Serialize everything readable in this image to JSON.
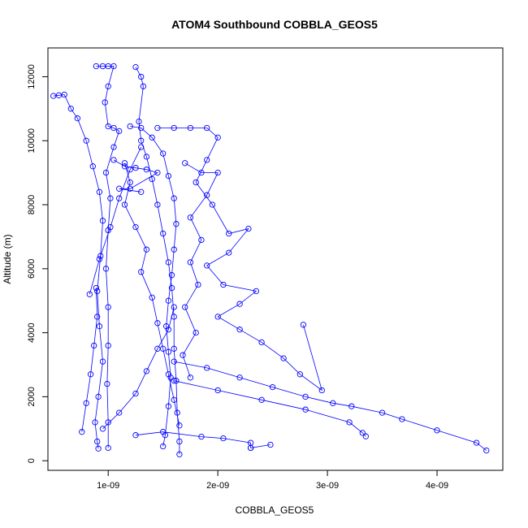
{
  "chart_data": {
    "type": "scatter",
    "title": "ATOM4 Southbound COBBLA_GEOS5",
    "xlabel": "COBBLA_GEOS5",
    "ylabel": "Altitude (m)",
    "xlim": [
      4.5e-10,
      4.6e-09
    ],
    "ylim": [
      -300,
      12900
    ],
    "x_ticks": [
      {
        "value": 1e-09,
        "label": "1e-09"
      },
      {
        "value": 2e-09,
        "label": "2e-09"
      },
      {
        "value": 3e-09,
        "label": "3e-09"
      },
      {
        "value": 4e-09,
        "label": "4e-09"
      }
    ],
    "y_ticks": [
      {
        "value": 0,
        "label": "0"
      },
      {
        "value": 2000,
        "label": "2000"
      },
      {
        "value": 4000,
        "label": "4000"
      },
      {
        "value": 6000,
        "label": "6000"
      },
      {
        "value": 8000,
        "label": "8000"
      },
      {
        "value": 10000,
        "label": "10000"
      },
      {
        "value": 12000,
        "label": "12000"
      }
    ],
    "grid": false,
    "color": "#0000ff",
    "marker": "open-circle",
    "connected": true,
    "series": [
      {
        "values": [
          [
            5e-10,
            11400
          ],
          [
            5.5e-10,
            11420
          ],
          [
            6e-10,
            11440
          ],
          [
            6.6e-10,
            11000
          ],
          [
            7.2e-10,
            10700
          ],
          [
            8e-10,
            10000
          ],
          [
            8.6e-10,
            9200
          ],
          [
            9.2e-10,
            8400
          ],
          [
            9.5e-10,
            7500
          ],
          [
            9.3e-10,
            6400
          ],
          [
            9e-10,
            5300
          ],
          [
            9.2e-10,
            4200
          ],
          [
            9.5e-10,
            3100
          ],
          [
            9.1e-10,
            2000
          ],
          [
            8.8e-10,
            1200
          ],
          [
            9e-10,
            600
          ],
          [
            9.1e-10,
            380
          ]
        ]
      },
      {
        "values": [
          [
            8.9e-10,
            12330
          ],
          [
            9.5e-10,
            12330
          ],
          [
            1e-09,
            12330
          ],
          [
            1.05e-09,
            12330
          ],
          [
            1e-09,
            11700
          ],
          [
            9.7e-10,
            11200
          ],
          [
            1e-09,
            10450
          ],
          [
            1.05e-09,
            10400
          ],
          [
            1.1e-09,
            10300
          ],
          [
            1.05e-09,
            9800
          ],
          [
            9.8e-10,
            9000
          ],
          [
            1.02e-09,
            8200
          ],
          [
            1e-09,
            7200
          ],
          [
            9.8e-10,
            6000
          ],
          [
            1e-09,
            4800
          ],
          [
            1e-09,
            3600
          ],
          [
            9.9e-10,
            2400
          ],
          [
            1e-09,
            1200
          ],
          [
            1e-09,
            400
          ]
        ]
      },
      {
        "values": [
          [
            1.25e-09,
            12300
          ],
          [
            1.3e-09,
            12000
          ],
          [
            1.32e-09,
            11700
          ],
          [
            1.28e-09,
            10600
          ],
          [
            1.3e-09,
            10000
          ],
          [
            1.35e-09,
            9500
          ],
          [
            1.4e-09,
            8800
          ],
          [
            1.45e-09,
            8000
          ],
          [
            1.5e-09,
            7100
          ],
          [
            1.55e-09,
            6200
          ],
          [
            1.58e-09,
            5400
          ],
          [
            1.6e-09,
            4500
          ],
          [
            1.6e-09,
            3500
          ],
          [
            1.62e-09,
            2500
          ],
          [
            1.63e-09,
            1500
          ],
          [
            1.65e-09,
            600
          ],
          [
            1.65e-09,
            200
          ]
        ]
      },
      {
        "values": [
          [
            1.2e-09,
            10450
          ],
          [
            1.3e-09,
            10400
          ],
          [
            1.4e-09,
            10100
          ],
          [
            1.5e-09,
            9600
          ],
          [
            1.55e-09,
            8900
          ],
          [
            1.6e-09,
            8200
          ],
          [
            1.62e-09,
            7400
          ],
          [
            1.6e-09,
            6600
          ],
          [
            1.58e-09,
            5800
          ],
          [
            1.55e-09,
            5000
          ],
          [
            1.53e-09,
            4200
          ],
          [
            1.55e-09,
            3400
          ],
          [
            1.57e-09,
            2600
          ],
          [
            1.55e-09,
            1700
          ],
          [
            1.52e-09,
            800
          ],
          [
            1.5e-09,
            450
          ]
        ]
      },
      {
        "values": [
          [
            1.45e-09,
            10400
          ],
          [
            1.6e-09,
            10400
          ],
          [
            1.75e-09,
            10400
          ],
          [
            1.9e-09,
            10400
          ],
          [
            2e-09,
            10100
          ],
          [
            1.9e-09,
            9400
          ],
          [
            1.8e-09,
            8700
          ],
          [
            1.95e-09,
            8000
          ],
          [
            2.1e-09,
            7100
          ],
          [
            2.28e-09,
            7250
          ],
          [
            2.1e-09,
            6500
          ],
          [
            1.9e-09,
            6100
          ],
          [
            2.05e-09,
            5500
          ],
          [
            2.35e-09,
            5300
          ],
          [
            2.2e-09,
            4900
          ],
          [
            2e-09,
            4500
          ],
          [
            2.2e-09,
            4100
          ],
          [
            2.4e-09,
            3700
          ],
          [
            2.6e-09,
            3200
          ],
          [
            2.75e-09,
            2700
          ],
          [
            2.95e-09,
            2200
          ],
          [
            2.78e-09,
            4250
          ]
        ]
      },
      {
        "values": [
          [
            1.6e-09,
            3100
          ],
          [
            1.9e-09,
            2900
          ],
          [
            2.2e-09,
            2600
          ],
          [
            2.5e-09,
            2300
          ],
          [
            2.8e-09,
            2000
          ],
          [
            3.05e-09,
            1800
          ],
          [
            3.22e-09,
            1700
          ],
          [
            3.5e-09,
            1500
          ],
          [
            3.68e-09,
            1300
          ],
          [
            4e-09,
            950
          ],
          [
            4.36e-09,
            560
          ],
          [
            4.45e-09,
            320
          ]
        ]
      },
      {
        "values": [
          [
            1.6e-09,
            2500
          ],
          [
            2e-09,
            2200
          ],
          [
            2.4e-09,
            1900
          ],
          [
            2.8e-09,
            1600
          ],
          [
            3.2e-09,
            1200
          ],
          [
            3.32e-09,
            870
          ],
          [
            3.35e-09,
            760
          ]
        ]
      },
      {
        "values": [
          [
            1.25e-09,
            800
          ],
          [
            1.5e-09,
            900
          ],
          [
            1.85e-09,
            750
          ],
          [
            2.05e-09,
            700
          ],
          [
            2.3e-09,
            560
          ],
          [
            2.3e-09,
            400
          ],
          [
            2.3e-09,
            400
          ],
          [
            2.48e-09,
            500
          ]
        ]
      },
      {
        "values": [
          [
            9.5e-10,
            1000
          ],
          [
            1.1e-09,
            1500
          ],
          [
            1.25e-09,
            2100
          ],
          [
            1.35e-09,
            2800
          ],
          [
            1.45e-09,
            3500
          ],
          [
            1.55e-09,
            4100
          ],
          [
            1.6e-09,
            4800
          ]
        ]
      },
      {
        "values": [
          [
            7.6e-10,
            900
          ],
          [
            8e-10,
            1800
          ],
          [
            8.4e-10,
            2700
          ],
          [
            8.7e-10,
            3600
          ],
          [
            9e-10,
            4500
          ],
          [
            8.9e-10,
            5400
          ]
        ]
      },
      {
        "values": [
          [
            1.15e-09,
            9300
          ],
          [
            1.2e-09,
            8700
          ],
          [
            1.15e-09,
            8000
          ],
          [
            1.25e-09,
            7300
          ],
          [
            1.35e-09,
            6600
          ],
          [
            1.3e-09,
            5900
          ],
          [
            1.4e-09,
            5100
          ],
          [
            1.45e-09,
            4300
          ],
          [
            1.5e-09,
            3500
          ],
          [
            1.55e-09,
            2700
          ],
          [
            1.6e-09,
            1900
          ],
          [
            1.65e-09,
            1100
          ]
        ]
      },
      {
        "values": [
          [
            1.7e-09,
            9300
          ],
          [
            1.85e-09,
            9000
          ],
          [
            2e-09,
            9000
          ],
          [
            1.9e-09,
            8300
          ],
          [
            1.75e-09,
            7600
          ],
          [
            1.85e-09,
            6900
          ],
          [
            1.75e-09,
            6200
          ],
          [
            1.82e-09,
            5500
          ],
          [
            1.7e-09,
            4800
          ],
          [
            1.8e-09,
            4000
          ],
          [
            1.68e-09,
            3300
          ],
          [
            1.75e-09,
            2600
          ]
        ]
      },
      {
        "values": [
          [
            8.3e-10,
            5200
          ],
          [
            9.2e-10,
            6300
          ],
          [
            1.02e-09,
            7300
          ],
          [
            1.1e-09,
            8200
          ],
          [
            1.2e-09,
            9100
          ],
          [
            1.3e-09,
            9800
          ]
        ]
      },
      {
        "values": [
          [
            1.05e-09,
            9400
          ],
          [
            1.15e-09,
            9200
          ],
          [
            1.25e-09,
            9150
          ],
          [
            1.35e-09,
            9100
          ],
          [
            1.45e-09,
            9000
          ],
          [
            1.2e-09,
            8500
          ],
          [
            1.1e-09,
            8500
          ],
          [
            1.3e-09,
            8400
          ]
        ]
      }
    ]
  }
}
